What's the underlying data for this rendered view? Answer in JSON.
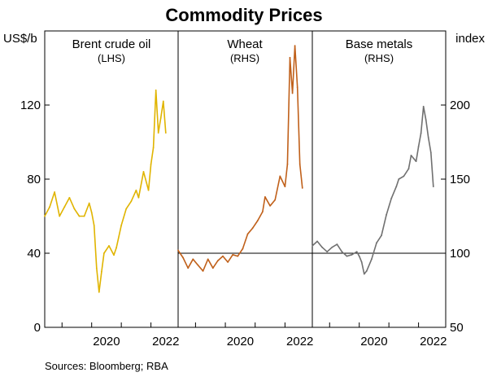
{
  "chart_data": {
    "type": "line",
    "title": "Commodity Prices",
    "left_axis": {
      "unit": "US$/b",
      "ylim": [
        0,
        160
      ],
      "ticks": [
        "0",
        "40",
        "80",
        "120"
      ]
    },
    "right_axis": {
      "unit": "index",
      "ylim": [
        50,
        250
      ],
      "ticks": [
        "50",
        "100",
        "150",
        "200"
      ]
    },
    "x_axis": {
      "ticks": [
        "2020",
        "2022"
      ]
    },
    "grid": false,
    "reference_line": {
      "axis": "right",
      "value": 100
    },
    "panels": [
      {
        "name": "Brent crude oil",
        "side": "(LHS)",
        "color": "#e0b400",
        "series": [
          {
            "x": "2018-06",
            "y": 60
          },
          {
            "x": "2018-08",
            "y": 65
          },
          {
            "x": "2018-10",
            "y": 73
          },
          {
            "x": "2018-12",
            "y": 60
          },
          {
            "x": "2019-02",
            "y": 65
          },
          {
            "x": "2019-04",
            "y": 70
          },
          {
            "x": "2019-06",
            "y": 64
          },
          {
            "x": "2019-08",
            "y": 60
          },
          {
            "x": "2019-10",
            "y": 60
          },
          {
            "x": "2019-12",
            "y": 67
          },
          {
            "x": "2020-01",
            "y": 62
          },
          {
            "x": "2020-02",
            "y": 55
          },
          {
            "x": "2020-03",
            "y": 32
          },
          {
            "x": "2020-04",
            "y": 19
          },
          {
            "x": "2020-05",
            "y": 30
          },
          {
            "x": "2020-06",
            "y": 40
          },
          {
            "x": "2020-08",
            "y": 44
          },
          {
            "x": "2020-10",
            "y": 39
          },
          {
            "x": "2020-11",
            "y": 43
          },
          {
            "x": "2021-01",
            "y": 55
          },
          {
            "x": "2021-03",
            "y": 64
          },
          {
            "x": "2021-05",
            "y": 68
          },
          {
            "x": "2021-07",
            "y": 74
          },
          {
            "x": "2021-08",
            "y": 70
          },
          {
            "x": "2021-10",
            "y": 84
          },
          {
            "x": "2021-12",
            "y": 74
          },
          {
            "x": "2022-01",
            "y": 88
          },
          {
            "x": "2022-02",
            "y": 97
          },
          {
            "x": "2022-03",
            "y": 128
          },
          {
            "x": "2022-04",
            "y": 105
          },
          {
            "x": "2022-05",
            "y": 113
          },
          {
            "x": "2022-06",
            "y": 122
          },
          {
            "x": "2022-07",
            "y": 105
          }
        ]
      },
      {
        "name": "Wheat",
        "side": "(RHS)",
        "color": "#c0601a",
        "series": [
          {
            "x": "2018-06",
            "y": 102
          },
          {
            "x": "2018-08",
            "y": 97
          },
          {
            "x": "2018-10",
            "y": 90
          },
          {
            "x": "2018-12",
            "y": 96
          },
          {
            "x": "2019-02",
            "y": 92
          },
          {
            "x": "2019-04",
            "y": 88
          },
          {
            "x": "2019-06",
            "y": 96
          },
          {
            "x": "2019-08",
            "y": 90
          },
          {
            "x": "2019-10",
            "y": 95
          },
          {
            "x": "2019-12",
            "y": 98
          },
          {
            "x": "2020-02",
            "y": 94
          },
          {
            "x": "2020-04",
            "y": 99
          },
          {
            "x": "2020-06",
            "y": 98
          },
          {
            "x": "2020-08",
            "y": 103
          },
          {
            "x": "2020-10",
            "y": 113
          },
          {
            "x": "2020-12",
            "y": 117
          },
          {
            "x": "2021-02",
            "y": 122
          },
          {
            "x": "2021-04",
            "y": 128
          },
          {
            "x": "2021-05",
            "y": 138
          },
          {
            "x": "2021-07",
            "y": 132
          },
          {
            "x": "2021-09",
            "y": 136
          },
          {
            "x": "2021-11",
            "y": 152
          },
          {
            "x": "2022-01",
            "y": 145
          },
          {
            "x": "2022-02",
            "y": 160
          },
          {
            "x": "2022-03",
            "y": 232
          },
          {
            "x": "2022-04",
            "y": 208
          },
          {
            "x": "2022-05",
            "y": 240
          },
          {
            "x": "2022-06",
            "y": 212
          },
          {
            "x": "2022-07",
            "y": 160
          },
          {
            "x": "2022-08",
            "y": 144
          }
        ]
      },
      {
        "name": "Base metals",
        "side": "(RHS)",
        "color": "#707070",
        "series": [
          {
            "x": "2018-06",
            "y": 105
          },
          {
            "x": "2018-08",
            "y": 108
          },
          {
            "x": "2018-10",
            "y": 104
          },
          {
            "x": "2018-12",
            "y": 101
          },
          {
            "x": "2019-02",
            "y": 104
          },
          {
            "x": "2019-04",
            "y": 106
          },
          {
            "x": "2019-06",
            "y": 101
          },
          {
            "x": "2019-08",
            "y": 98
          },
          {
            "x": "2019-10",
            "y": 99
          },
          {
            "x": "2019-12",
            "y": 101
          },
          {
            "x": "2020-01",
            "y": 98
          },
          {
            "x": "2020-02",
            "y": 94
          },
          {
            "x": "2020-03",
            "y": 86
          },
          {
            "x": "2020-04",
            "y": 88
          },
          {
            "x": "2020-06",
            "y": 96
          },
          {
            "x": "2020-08",
            "y": 107
          },
          {
            "x": "2020-10",
            "y": 112
          },
          {
            "x": "2020-12",
            "y": 126
          },
          {
            "x": "2021-02",
            "y": 137
          },
          {
            "x": "2021-04",
            "y": 145
          },
          {
            "x": "2021-05",
            "y": 150
          },
          {
            "x": "2021-07",
            "y": 152
          },
          {
            "x": "2021-09",
            "y": 157
          },
          {
            "x": "2021-10",
            "y": 166
          },
          {
            "x": "2021-12",
            "y": 162
          },
          {
            "x": "2022-01",
            "y": 172
          },
          {
            "x": "2022-02",
            "y": 181
          },
          {
            "x": "2022-03",
            "y": 199
          },
          {
            "x": "2022-04",
            "y": 190
          },
          {
            "x": "2022-05",
            "y": 178
          },
          {
            "x": "2022-06",
            "y": 168
          },
          {
            "x": "2022-07",
            "y": 145
          }
        ]
      }
    ],
    "source": "Sources: Bloomberg; RBA"
  }
}
